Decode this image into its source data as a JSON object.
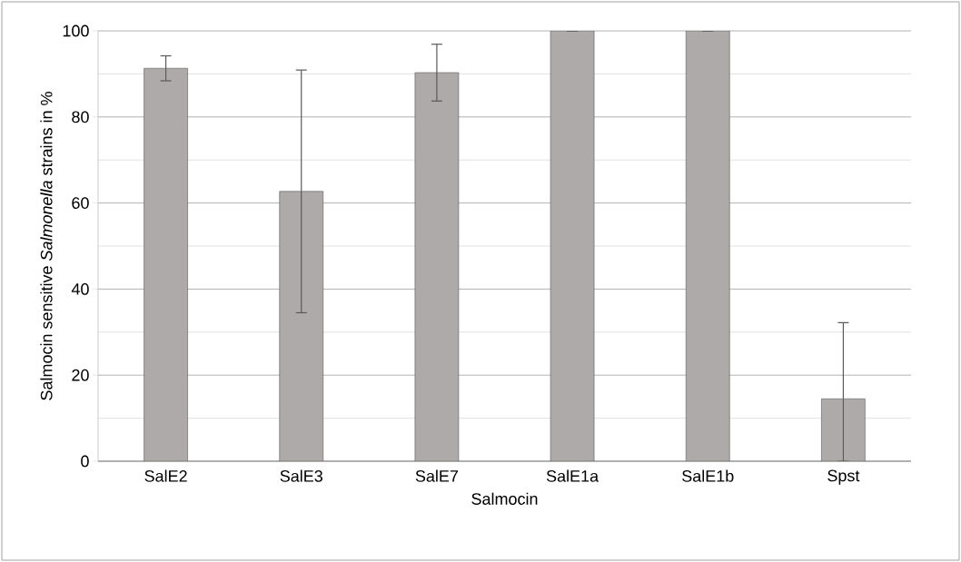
{
  "chart_data": {
    "type": "bar",
    "xlabel": "Salmocin",
    "ylabel": "Salmocin sensitive *Salmonella* strains in %",
    "categories": [
      "SalE2",
      "SalE3",
      "SalE7",
      "SalE1a",
      "SalE1b",
      "Spst"
    ],
    "values": [
      91.3,
      62.7,
      90.3,
      100,
      100,
      14.5
    ],
    "errors": [
      2.9,
      28.2,
      6.6,
      null,
      null,
      [
        0,
        32.2
      ]
    ],
    "color": "#aeaaaa",
    "ylim": [
      0,
      100
    ],
    "yticks": [
      0,
      20,
      40,
      60,
      80,
      100
    ],
    "grid": "y"
  }
}
